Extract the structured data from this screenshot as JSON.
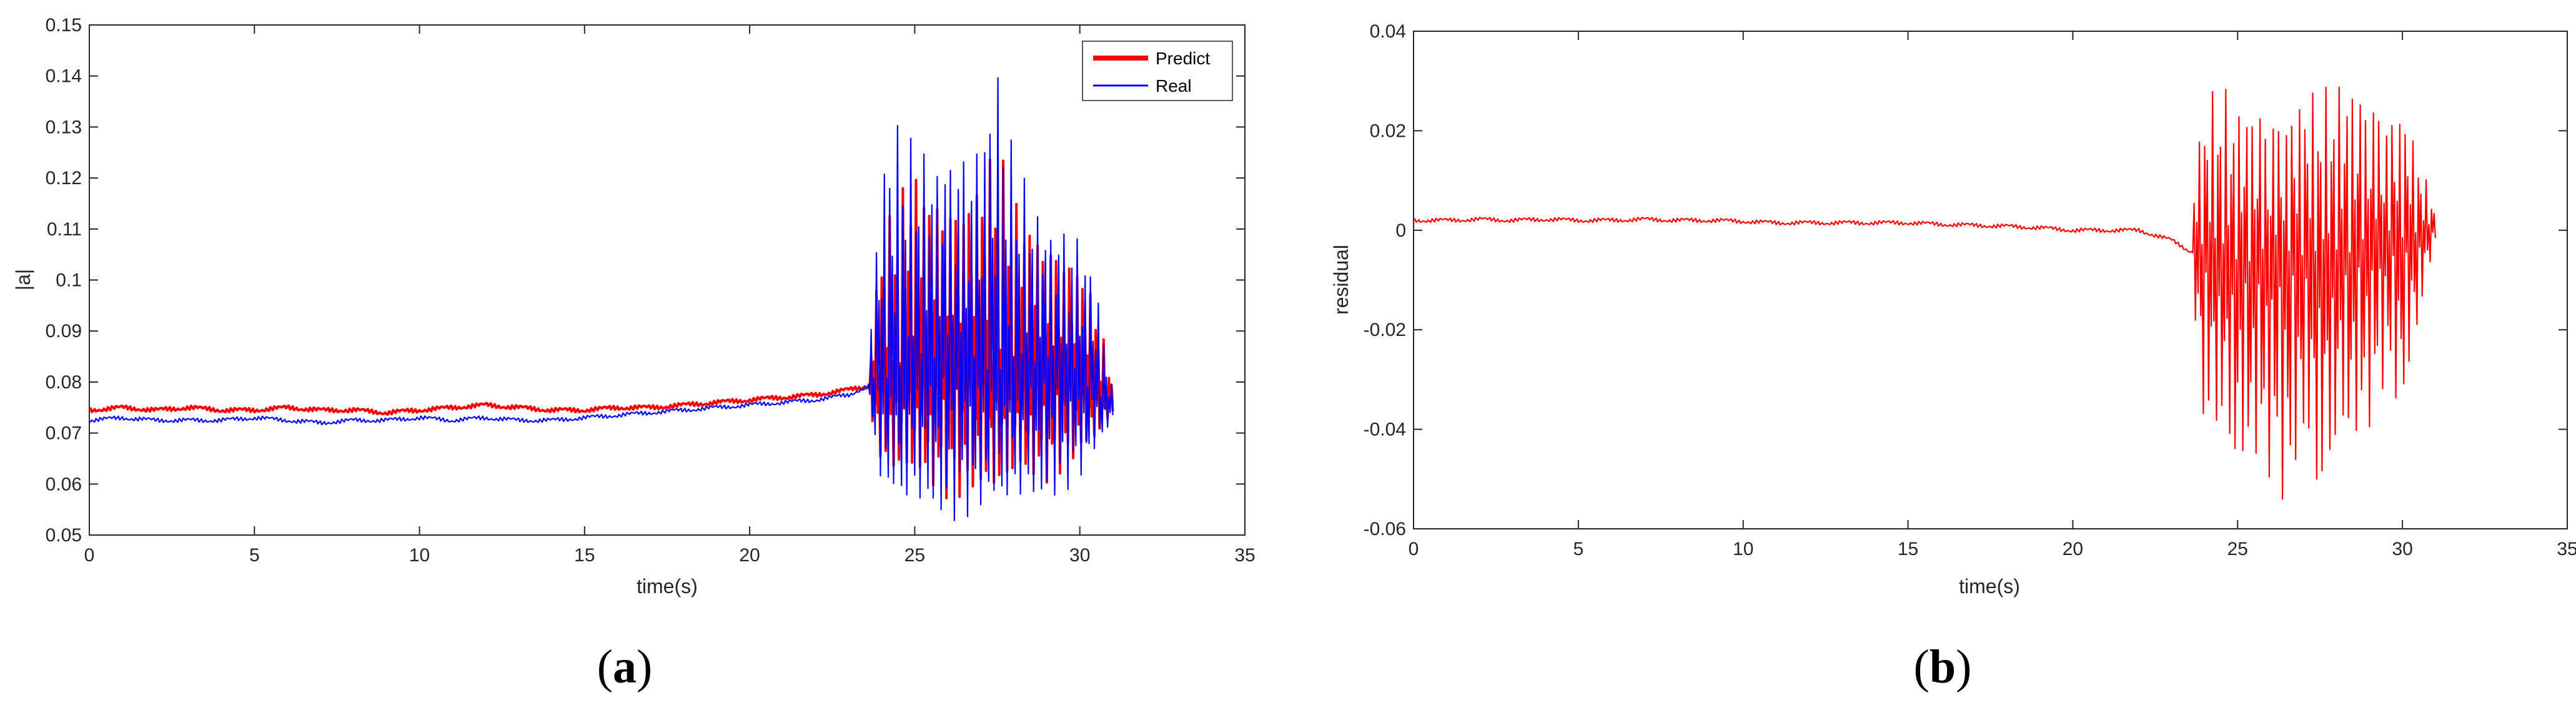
{
  "panels": [
    {
      "label_open": "(",
      "label_letter": "a",
      "label_close": ")"
    },
    {
      "label_open": "(",
      "label_letter": "b",
      "label_close": ")"
    }
  ],
  "chart_data": [
    {
      "type": "line",
      "title": "",
      "xlabel": "time(s)",
      "ylabel": "|a|",
      "xlim": [
        0,
        35
      ],
      "ylim": [
        0.05,
        0.15
      ],
      "xticks": [
        "0",
        "5",
        "10",
        "15",
        "20",
        "25",
        "30",
        "35"
      ],
      "yticks": [
        "0.05",
        "0.06",
        "0.07",
        "0.08",
        "0.09",
        "0.1",
        "0.11",
        "0.12",
        "0.13",
        "0.14",
        "0.15"
      ],
      "grid": false,
      "legend_position": "top-right",
      "series": [
        {
          "name": "Predict",
          "color": "#ff0000",
          "x": [
            0,
            1,
            2,
            3,
            4,
            5,
            6,
            7,
            8,
            9,
            10,
            11,
            12,
            13,
            14,
            15,
            16,
            17,
            18,
            19,
            20,
            21,
            22,
            23,
            23.5,
            24,
            24.5,
            25,
            25.5,
            26,
            26.5,
            27,
            27.5,
            28,
            28.5,
            29,
            29.5,
            30,
            30.5,
            31
          ],
          "y": [
            0.0745,
            0.075,
            0.0745,
            0.075,
            0.0745,
            0.0745,
            0.075,
            0.0745,
            0.0745,
            0.074,
            0.0745,
            0.075,
            0.0755,
            0.075,
            0.0745,
            0.0745,
            0.075,
            0.075,
            0.0755,
            0.076,
            0.0765,
            0.077,
            0.0775,
            0.0785,
            0.079,
            0.08,
            0.08,
            0.081,
            0.08,
            0.081,
            0.08,
            0.081,
            0.08,
            0.08,
            0.08,
            0.08,
            0.0795,
            0.079,
            0.078,
            0.076
          ],
          "envelope": {
            "x": [
              23.6,
              24,
              25,
              26,
              27,
              27.5,
              28,
              29,
              30,
              30.5,
              31
            ],
            "ymin": [
              0.075,
              0.062,
              0.06,
              0.057,
              0.057,
              0.057,
              0.06,
              0.06,
              0.065,
              0.068,
              0.074
            ],
            "ymax": [
              0.085,
              0.11,
              0.123,
              0.117,
              0.123,
              0.127,
              0.117,
              0.11,
              0.105,
              0.095,
              0.08
            ]
          }
        },
        {
          "name": "Real",
          "color": "#0000ff",
          "x": [
            0,
            1,
            2,
            3,
            4,
            5,
            6,
            7,
            8,
            9,
            10,
            11,
            12,
            13,
            14,
            15,
            16,
            17,
            18,
            19,
            20,
            21,
            22,
            23,
            23.5,
            24,
            24.5,
            25,
            25.5,
            26,
            26.5,
            27,
            27.5,
            28,
            28.5,
            29,
            29.5,
            30,
            30.5,
            31
          ],
          "y": [
            0.0725,
            0.073,
            0.0725,
            0.0725,
            0.0725,
            0.073,
            0.0725,
            0.072,
            0.0725,
            0.0725,
            0.073,
            0.0725,
            0.073,
            0.0725,
            0.0725,
            0.073,
            0.0735,
            0.074,
            0.0745,
            0.075,
            0.0755,
            0.076,
            0.0765,
            0.0775,
            0.079,
            0.08,
            0.08,
            0.082,
            0.08,
            0.082,
            0.08,
            0.082,
            0.081,
            0.08,
            0.08,
            0.08,
            0.0795,
            0.079,
            0.078,
            0.074
          ],
          "envelope": {
            "x": [
              23.6,
              24,
              24.5,
              25,
              26,
              26.5,
              27,
              27.5,
              28,
              29,
              30,
              30.5,
              31
            ],
            "ymin": [
              0.074,
              0.057,
              0.054,
              0.055,
              0.052,
              0.053,
              0.053,
              0.052,
              0.056,
              0.056,
              0.06,
              0.065,
              0.073
            ],
            "ymax": [
              0.086,
              0.125,
              0.132,
              0.127,
              0.13,
              0.128,
              0.13,
              0.144,
              0.125,
              0.115,
              0.11,
              0.1,
              0.078
            ]
          }
        }
      ]
    },
    {
      "type": "line",
      "title": "",
      "xlabel": "time(s)",
      "ylabel": "residual",
      "xlim": [
        0,
        35
      ],
      "ylim": [
        -0.06,
        0.04
      ],
      "xticks": [
        "0",
        "5",
        "10",
        "15",
        "20",
        "25",
        "30",
        "35"
      ],
      "yticks": [
        "-0.06",
        "-0.04",
        "-0.02",
        "0",
        "0.02",
        "0.04"
      ],
      "grid": false,
      "series": [
        {
          "name": "",
          "color": "#ff0000",
          "x": [
            0,
            1,
            2,
            3,
            4,
            5,
            6,
            7,
            8,
            9,
            10,
            11,
            12,
            13,
            14,
            15,
            16,
            17,
            18,
            19,
            20,
            21,
            22,
            23,
            23.5,
            24,
            24.5,
            25,
            25.5,
            26,
            26.5,
            27,
            27.5,
            28,
            28.5,
            29,
            29.5,
            30,
            30.5,
            31
          ],
          "y": [
            0.002,
            0.002,
            0.0022,
            0.002,
            0.0022,
            0.002,
            0.002,
            0.0022,
            0.002,
            0.002,
            0.0018,
            0.0015,
            0.0015,
            0.0015,
            0.0015,
            0.0015,
            0.0012,
            0.001,
            0.0008,
            0.0005,
            0.0,
            0.0,
            0.0,
            -0.002,
            -0.004,
            -0.005,
            -0.006,
            -0.007,
            -0.008,
            -0.008,
            -0.008,
            -0.007,
            -0.007,
            -0.006,
            -0.006,
            -0.005,
            -0.004,
            -0.003,
            -0.001,
            0.001
          ],
          "envelope": {
            "x": [
              23.6,
              24,
              24.5,
              25,
              25.5,
              26,
              26.5,
              27,
              27.5,
              28,
              28.5,
              29,
              29.5,
              30,
              30.5,
              31
            ],
            "ymin": [
              -0.01,
              -0.045,
              -0.042,
              -0.055,
              -0.047,
              -0.05,
              -0.057,
              -0.045,
              -0.06,
              -0.047,
              -0.045,
              -0.04,
              -0.03,
              -0.04,
              -0.02,
              -0.002
            ],
            "ymax": [
              0.01,
              0.027,
              0.03,
              0.025,
              0.028,
              0.025,
              0.027,
              0.03,
              0.028,
              0.03,
              0.032,
              0.03,
              0.025,
              0.027,
              0.015,
              0.004
            ]
          }
        }
      ]
    }
  ]
}
